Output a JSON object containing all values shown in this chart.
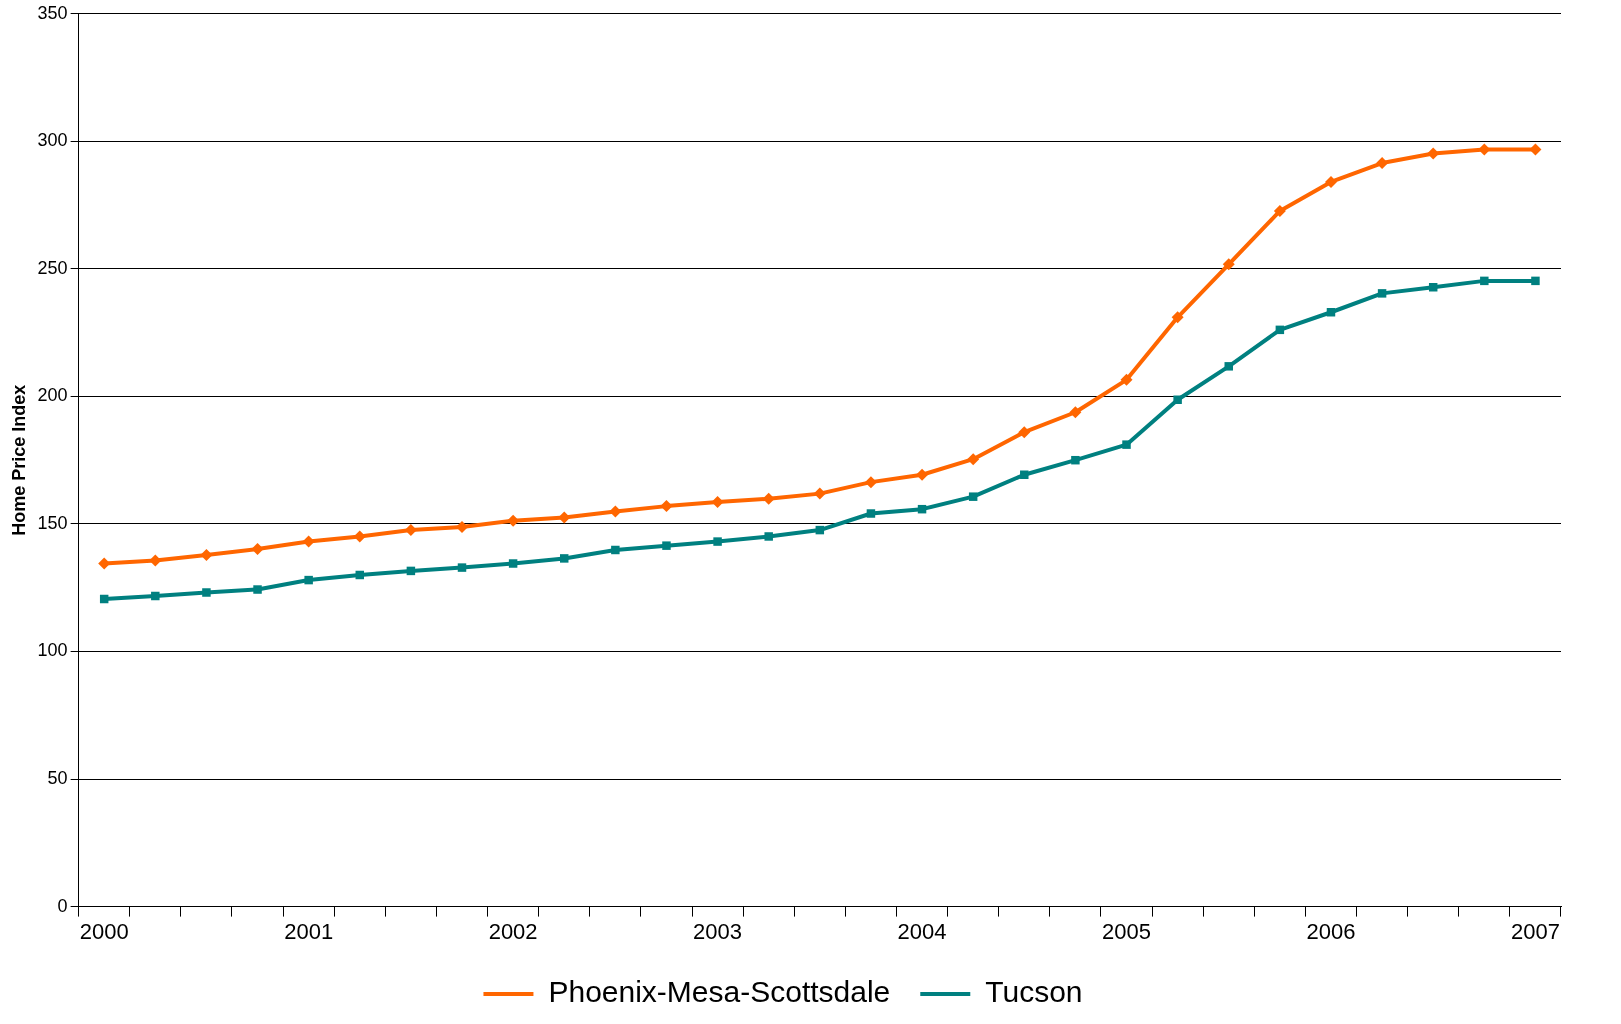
{
  "chart_data": {
    "type": "line",
    "ylabel": "Home Price Index",
    "categories": [
      "2000",
      null,
      null,
      null,
      "2001",
      null,
      null,
      null,
      "2002",
      null,
      null,
      null,
      "2003",
      null,
      null,
      null,
      "2004",
      null,
      null,
      null,
      "2005",
      null,
      null,
      null,
      "2006",
      null,
      null,
      null,
      "2007"
    ],
    "series": [
      {
        "name": "Phoenix-Mesa-Scottsdale",
        "color": "#ff6600",
        "marker": "diamond",
        "values": [
          134.5,
          135.7,
          137.8,
          140.2,
          143.1,
          145.1,
          147.6,
          148.8,
          151.3,
          152.5,
          154.9,
          157,
          158.6,
          159.9,
          161.9,
          166.4,
          169.3,
          175.4,
          186,
          193.8,
          206.5,
          231,
          251.8,
          272.7,
          284.1,
          291.5,
          295.2,
          296.8,
          296.8
        ]
      },
      {
        "name": "Tucson",
        "color": "#008080",
        "marker": "square",
        "values": [
          120.6,
          121.8,
          123.1,
          124.3,
          128,
          130,
          131.6,
          132.9,
          134.5,
          136.5,
          139.8,
          141.5,
          143.1,
          145.1,
          147.6,
          154.1,
          155.8,
          160.7,
          169.3,
          175,
          181.1,
          198.7,
          211.8,
          226.1,
          233,
          240.4,
          242.8,
          245.3,
          245.3
        ]
      }
    ],
    "ylim": [
      0,
      350
    ],
    "yticks": [
      0,
      50,
      100,
      150,
      200,
      250,
      300,
      350
    ],
    "grid": "y",
    "legend": "bottom",
    "line_style": "solid"
  }
}
